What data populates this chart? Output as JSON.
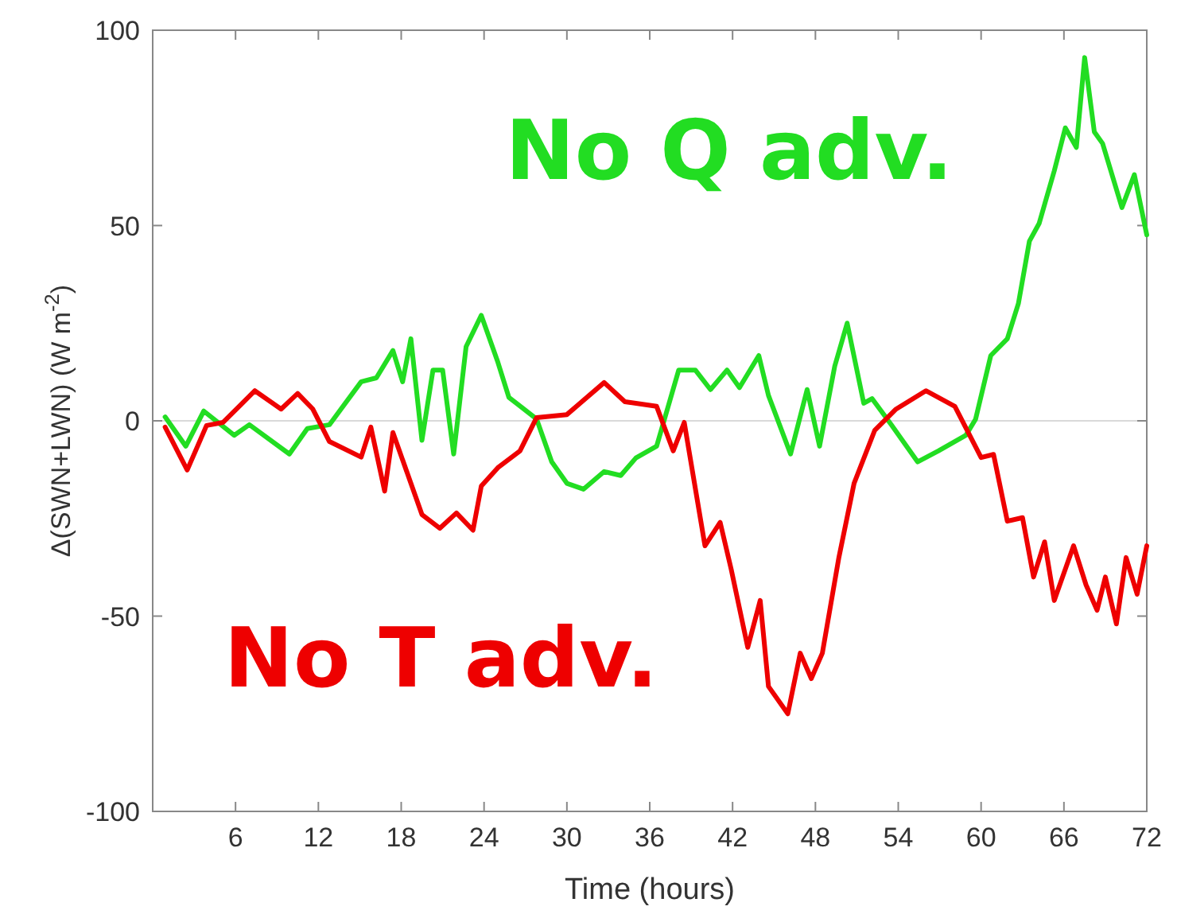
{
  "chart_data": {
    "type": "line",
    "xlabel": "Time (hours)",
    "ylabel": "Δ(SWN+LWN) (W m$^{-2}$)",
    "xlim": [
      0,
      72
    ],
    "xticks": [
      6,
      12,
      18,
      24,
      30,
      36,
      42,
      48,
      54,
      60,
      66,
      72
    ],
    "ylim": [
      -100,
      100
    ],
    "yticks": [
      -100,
      -50,
      0,
      50,
      100
    ],
    "grid": false,
    "ref_lines": [
      {
        "axis": "y",
        "value": 0,
        "color": "#d9d9d9"
      }
    ],
    "series": [
      {
        "name": "No Q adv.",
        "color": "#22dd22",
        "x": [
          0.9,
          2.4,
          3.7,
          5.9,
          7,
          9.9,
          11.2,
          12.8,
          15.1,
          16.2,
          17.4,
          18.1,
          18.7,
          19.5,
          20.3,
          21,
          21.8,
          22.7,
          23.8,
          25,
          25.8,
          27.8,
          28.9,
          30,
          31.2,
          32.7,
          33.9,
          35,
          36.5,
          38.1,
          39.3,
          40.4,
          41.6,
          42.5,
          43.9,
          44.6,
          46.2,
          47.4,
          48.3,
          49.4,
          50.3,
          51.5,
          52.1,
          53.5,
          55.4,
          56.9,
          58.9,
          59.6,
          60.7,
          61.9,
          62.7,
          63.5,
          64.2,
          65.3,
          66.1,
          66.9,
          67.5,
          68.2,
          68.8,
          70.2,
          71.1,
          72
        ],
        "values": [
          1,
          -6.5,
          2.5,
          -3.7,
          -1,
          -8.5,
          -2,
          -1,
          10,
          11,
          18,
          10,
          21,
          -5,
          13,
          13,
          -8.5,
          19,
          27,
          15,
          6,
          0.5,
          -10.5,
          -16,
          -17.5,
          -13,
          -14,
          -9.5,
          -6.5,
          13,
          13,
          8,
          13,
          8.5,
          16.7,
          6.5,
          -8.5,
          8,
          -6.5,
          14,
          25,
          4.5,
          5.7,
          -1,
          -10.5,
          -7.7,
          -3.7,
          0.4,
          16.7,
          21,
          30,
          46,
          50.5,
          64,
          75,
          70,
          93,
          74,
          71,
          54.6,
          63,
          47.6
        ]
      },
      {
        "name": "No T adv.",
        "color": "#ee0000",
        "x": [
          0.9,
          2.5,
          3.9,
          5.1,
          7.4,
          9.3,
          10.5,
          11.6,
          12.8,
          15.1,
          15.8,
          16.8,
          17.4,
          19.5,
          20.8,
          22,
          23.2,
          23.8,
          25,
          26.6,
          27.8,
          30,
          32.7,
          34.2,
          36.5,
          37.7,
          38.5,
          40,
          41.1,
          41.9,
          43.1,
          44,
          44.6,
          46,
          46.9,
          47.7,
          48.5,
          49.7,
          50.8,
          52.3,
          53.8,
          56,
          58.1,
          60,
          60.9,
          61.9,
          63,
          63.8,
          64.6,
          65.3,
          66.7,
          67.6,
          68.4,
          69,
          69.8,
          70.5,
          71.3,
          72
        ],
        "values": [
          -1.6,
          -12.6,
          -1.2,
          -0.4,
          7.7,
          3,
          7,
          3,
          -5.3,
          -9.3,
          -1.6,
          -18,
          -3,
          -24,
          -27.5,
          -23.6,
          -28,
          -16.7,
          -12,
          -7.7,
          0.8,
          1.6,
          9.8,
          4.9,
          3.7,
          -7.7,
          -0.4,
          -32,
          -26,
          -38,
          -58,
          -46,
          -68,
          -75,
          -59.5,
          -66,
          -59.5,
          -35,
          -16,
          -2.4,
          2.9,
          7.7,
          3.7,
          -9.4,
          -8.6,
          -25.7,
          -24.8,
          -40,
          -31,
          -46,
          -32,
          -42,
          -48.5,
          -40,
          -52,
          -35,
          -44.4,
          -32
        ]
      }
    ]
  }
}
